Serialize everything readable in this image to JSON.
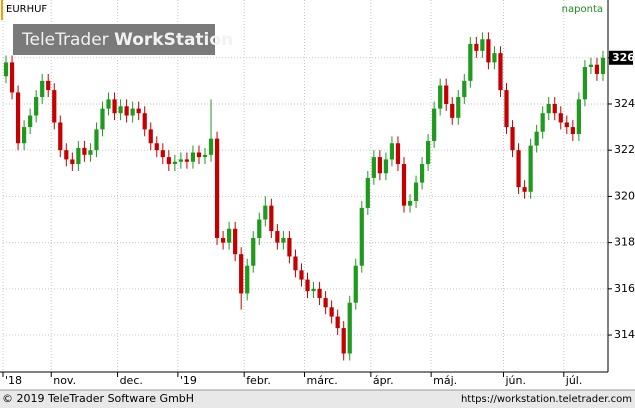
{
  "chart_data": {
    "type": "candlestick",
    "symbol": "EURHUF",
    "interval": "naponta",
    "watermark": [
      "TeleTrader",
      "WorkStation"
    ],
    "footer_left": "© 2019 TeleTrader Software GmbH",
    "footer_right": "https://workstation.teletrader.com",
    "up_color": "#1f9a1f",
    "down_color": "#c40000",
    "open": [
      325.2,
      325.8,
      324.5,
      322.3,
      323.0,
      323.5,
      324.3,
      325.0,
      324.6,
      323.2,
      322.0,
      321.6,
      321.4,
      322.1,
      321.8,
      322.0,
      322.9,
      323.8,
      324.2,
      323.6,
      323.9,
      323.5,
      323.8,
      323.6,
      322.9,
      322.3,
      322.0,
      321.7,
      321.4,
      321.5,
      321.6,
      321.5,
      321.9,
      321.7,
      321.8,
      322.5,
      318.2,
      318.0,
      318.6,
      317.5,
      315.8,
      317.0,
      318.2,
      319.0,
      319.6,
      318.5,
      318.0,
      318.2,
      317.4,
      316.8,
      316.4,
      315.9,
      316.0,
      315.6,
      315.2,
      314.8,
      314.3,
      313.2,
      315.4,
      317.0,
      319.5,
      320.8,
      321.7,
      321.0,
      321.6,
      322.3,
      321.4,
      319.6,
      319.8,
      320.6,
      321.4,
      322.4,
      323.8,
      324.8,
      324.0,
      323.4,
      324.3,
      325.0,
      326.6,
      326.3,
      326.8,
      325.8,
      326.2,
      324.6,
      323.0,
      322.0,
      320.4,
      320.2,
      322.2,
      322.8,
      323.6,
      324.0,
      323.6,
      323.2,
      323.0,
      322.7,
      324.2,
      325.6,
      325.7,
      325.3
    ],
    "high": [
      326.1,
      326.1,
      324.8,
      323.3,
      323.8,
      324.6,
      325.3,
      325.3,
      324.9,
      323.5,
      322.3,
      321.9,
      322.4,
      322.4,
      322.3,
      323.2,
      324.1,
      324.5,
      324.5,
      324.2,
      324.2,
      324.1,
      324.1,
      323.9,
      323.2,
      322.6,
      322.3,
      322.0,
      321.8,
      321.9,
      321.9,
      322.2,
      322.2,
      322.1,
      324.2,
      322.8,
      318.5,
      318.9,
      318.9,
      317.8,
      317.3,
      318.5,
      319.3,
      320.0,
      319.9,
      318.8,
      318.5,
      318.5,
      317.7,
      317.1,
      316.7,
      316.3,
      316.3,
      315.9,
      315.5,
      315.1,
      314.6,
      315.7,
      317.3,
      319.8,
      321.1,
      322.0,
      322.0,
      321.9,
      322.6,
      322.6,
      321.7,
      320.1,
      320.9,
      321.7,
      322.7,
      324.1,
      325.1,
      325.1,
      324.3,
      324.6,
      325.3,
      326.9,
      326.9,
      327.1,
      327.1,
      326.5,
      326.5,
      324.9,
      323.3,
      322.3,
      320.7,
      322.5,
      323.1,
      323.9,
      324.3,
      324.3,
      323.9,
      323.5,
      323.3,
      324.5,
      325.9,
      326.0,
      326.0,
      326.3
    ],
    "low": [
      324.9,
      324.2,
      322.0,
      322.0,
      322.7,
      323.2,
      324.0,
      324.3,
      322.9,
      321.7,
      321.3,
      321.1,
      321.1,
      321.5,
      321.5,
      321.7,
      322.6,
      323.5,
      323.3,
      323.3,
      323.2,
      323.2,
      323.3,
      322.6,
      322.0,
      321.7,
      321.4,
      321.1,
      321.1,
      321.2,
      321.2,
      321.2,
      321.4,
      321.4,
      321.5,
      317.9,
      317.7,
      317.7,
      317.2,
      315.1,
      315.5,
      316.7,
      317.9,
      318.7,
      318.2,
      317.7,
      317.7,
      317.1,
      316.5,
      316.1,
      315.6,
      315.6,
      315.3,
      314.9,
      314.5,
      314.0,
      312.9,
      312.9,
      315.1,
      316.7,
      319.2,
      320.5,
      320.7,
      320.7,
      321.3,
      321.1,
      319.3,
      319.3,
      319.5,
      320.3,
      321.1,
      322.1,
      323.5,
      323.7,
      323.1,
      323.1,
      324.0,
      324.7,
      326.0,
      326.0,
      325.5,
      325.5,
      324.3,
      322.7,
      321.7,
      320.1,
      319.9,
      319.9,
      321.9,
      322.5,
      323.3,
      323.3,
      322.9,
      322.7,
      322.4,
      322.4,
      323.9,
      325.3,
      325.0,
      325.0
    ],
    "close": [
      325.8,
      324.5,
      322.3,
      323.0,
      323.5,
      324.3,
      325.0,
      324.6,
      323.2,
      322.0,
      321.6,
      321.4,
      322.1,
      321.8,
      322.0,
      322.9,
      323.8,
      324.2,
      323.6,
      323.9,
      323.5,
      323.8,
      323.6,
      322.9,
      322.3,
      322.0,
      321.7,
      321.4,
      321.5,
      321.6,
      321.5,
      321.9,
      321.7,
      321.8,
      322.5,
      318.2,
      318.0,
      318.6,
      317.5,
      315.8,
      317.0,
      318.2,
      319.0,
      319.6,
      318.5,
      318.0,
      318.2,
      317.4,
      316.8,
      316.4,
      315.9,
      316.0,
      315.6,
      315.2,
      314.8,
      314.3,
      313.2,
      315.4,
      317.0,
      319.5,
      320.8,
      321.7,
      321.0,
      321.6,
      322.3,
      321.4,
      319.6,
      319.8,
      320.6,
      321.4,
      322.4,
      323.8,
      324.8,
      324.0,
      323.4,
      324.3,
      325.0,
      326.6,
      326.3,
      326.8,
      325.8,
      326.2,
      324.6,
      323.0,
      322.0,
      320.4,
      320.2,
      322.2,
      322.8,
      323.6,
      324.0,
      323.6,
      323.2,
      323.0,
      322.7,
      324.2,
      325.6,
      325.7,
      325.3,
      326.0
    ],
    "last_price": 326,
    "ylim": [
      312.4,
      328.5
    ],
    "yticks": [
      314,
      316,
      318,
      320,
      322,
      324,
      326
    ],
    "xticks": [
      {
        "value": 0,
        "label": "'18"
      },
      {
        "value": 8,
        "label": "nov."
      },
      {
        "value": 19,
        "label": "dec."
      },
      {
        "value": 29,
        "label": "'19"
      },
      {
        "value": 40,
        "label": "febr."
      },
      {
        "value": 50,
        "label": "márc."
      },
      {
        "value": 61,
        "label": "ápr."
      },
      {
        "value": 71,
        "label": "máj."
      },
      {
        "value": 83,
        "label": "jún."
      },
      {
        "value": 93,
        "label": "júl."
      }
    ],
    "grid": true
  }
}
